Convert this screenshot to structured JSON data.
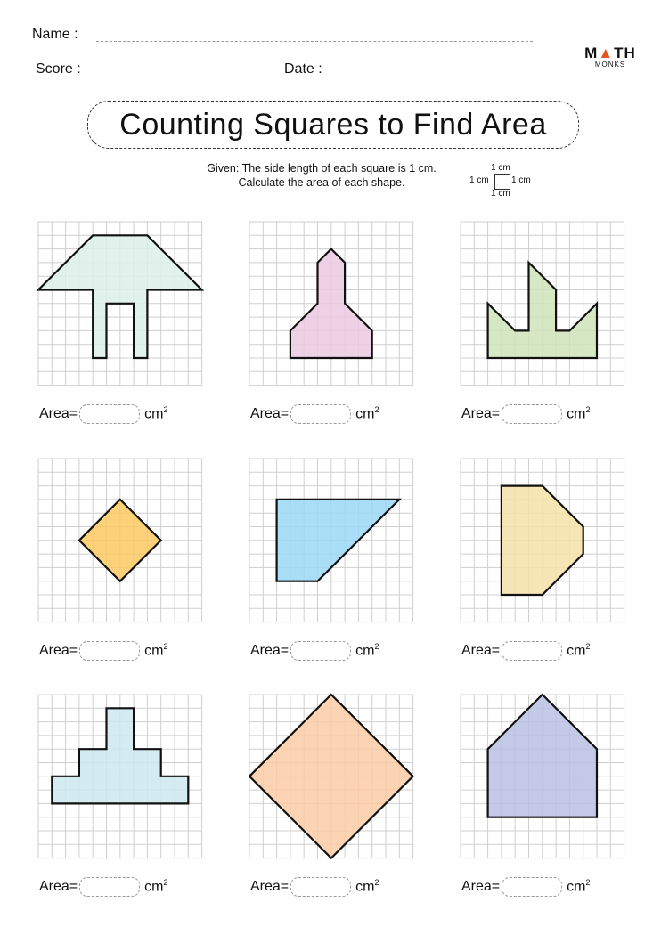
{
  "header": {
    "name_label": "Name :",
    "score_label": "Score :",
    "date_label": "Date :"
  },
  "logo": {
    "line1": "MATH",
    "line2": "MONKS",
    "accent": "#e8541e"
  },
  "title": "Counting Squares to Find Area",
  "instructions": {
    "line1": "Given: The side length of each square is 1 cm.",
    "line2": "Calculate the area of each shape."
  },
  "unit_square": {
    "top": "1 cm",
    "left": "1 cm",
    "right": "1 cm",
    "bottom": "1 cm"
  },
  "area_label": {
    "prefix": "Area",
    "equals": "=",
    "unit": "cm",
    "exp": "2"
  },
  "grid_size": 12,
  "shapes": [
    {
      "color": "#dcefe9",
      "points": [
        [
          4,
          1
        ],
        [
          8,
          1
        ],
        [
          12,
          5
        ],
        [
          8,
          5
        ],
        [
          8,
          10
        ],
        [
          7,
          10
        ],
        [
          7,
          6
        ],
        [
          5,
          6
        ],
        [
          5,
          10
        ],
        [
          4,
          10
        ],
        [
          4,
          5
        ],
        [
          0,
          5
        ]
      ]
    },
    {
      "color": "#ebc9df",
      "points": [
        [
          6,
          2
        ],
        [
          7,
          3
        ],
        [
          7,
          6
        ],
        [
          9,
          8
        ],
        [
          9,
          10
        ],
        [
          3,
          10
        ],
        [
          3,
          8
        ],
        [
          5,
          6
        ],
        [
          5,
          3
        ]
      ]
    },
    {
      "color": "#cfe3b9",
      "points": [
        [
          2,
          6
        ],
        [
          4,
          8
        ],
        [
          5,
          8
        ],
        [
          5,
          3
        ],
        [
          7,
          5
        ],
        [
          7,
          8
        ],
        [
          8,
          8
        ],
        [
          10,
          6
        ],
        [
          10,
          10
        ],
        [
          2,
          10
        ]
      ]
    },
    {
      "color": "#fbc961",
      "points": [
        [
          6,
          3
        ],
        [
          9,
          6
        ],
        [
          6,
          9
        ],
        [
          3,
          6
        ]
      ]
    },
    {
      "color": "#9bd7f4",
      "points": [
        [
          2,
          3
        ],
        [
          11,
          3
        ],
        [
          5,
          9
        ],
        [
          2,
          9
        ]
      ]
    },
    {
      "color": "#f6e2a8",
      "points": [
        [
          3,
          2
        ],
        [
          6,
          2
        ],
        [
          9,
          5
        ],
        [
          9,
          7
        ],
        [
          6,
          10
        ],
        [
          3,
          10
        ]
      ]
    },
    {
      "color": "#cde9ee",
      "points": [
        [
          5,
          1
        ],
        [
          7,
          1
        ],
        [
          7,
          4
        ],
        [
          9,
          4
        ],
        [
          9,
          6
        ],
        [
          11,
          6
        ],
        [
          11,
          8
        ],
        [
          1,
          8
        ],
        [
          1,
          6
        ],
        [
          3,
          6
        ],
        [
          3,
          4
        ],
        [
          5,
          4
        ]
      ]
    },
    {
      "color": "#fbcba6",
      "points": [
        [
          6,
          0
        ],
        [
          12,
          6
        ],
        [
          6,
          12
        ],
        [
          0,
          6
        ]
      ]
    },
    {
      "color": "#bbbfe4",
      "points": [
        [
          6,
          0
        ],
        [
          10,
          4
        ],
        [
          10,
          9
        ],
        [
          2,
          9
        ],
        [
          2,
          4
        ]
      ]
    }
  ]
}
